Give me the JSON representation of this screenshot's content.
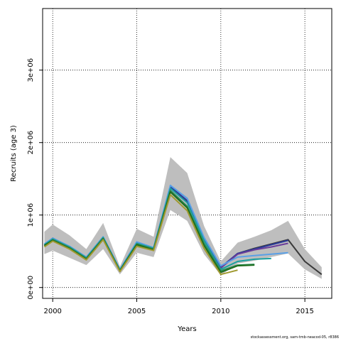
{
  "chart_data": {
    "type": "line",
    "title": "",
    "xlabel": "Years",
    "ylabel": "Recruits (age 3)",
    "xlim": [
      1999.4,
      2016.6
    ],
    "ylim": [
      -150000,
      3850000
    ],
    "x_ticks": [
      2000,
      2005,
      2010,
      2015
    ],
    "x_tick_labels": [
      "2000",
      "2005",
      "2010",
      "2015"
    ],
    "y_ticks": [
      0,
      1000000,
      2000000,
      3000000
    ],
    "y_tick_labels": [
      "0e+00",
      "1e+06",
      "2e+06",
      "3e+06"
    ],
    "grid": "dotted",
    "legend": "none",
    "confidence_band": {
      "x": [
        1999.5,
        2000,
        2001,
        2002,
        2003,
        2004,
        2005,
        2006,
        2007,
        2008,
        2009,
        2010,
        2011,
        2012,
        2013,
        2014,
        2015,
        2016
      ],
      "lower": [
        460000,
        510000,
        410000,
        310000,
        530000,
        180000,
        480000,
        420000,
        1070000,
        920000,
        460000,
        170000,
        330000,
        370000,
        420000,
        470000,
        250000,
        120000
      ],
      "upper": [
        770000,
        870000,
        720000,
        530000,
        890000,
        290000,
        810000,
        700000,
        1800000,
        1580000,
        850000,
        360000,
        620000,
        700000,
        790000,
        920000,
        530000,
        280000
      ],
      "color": "#bebebe"
    },
    "series": [
      {
        "color": "#3a3a3a",
        "x": [
          1999.5,
          2000,
          2001,
          2002,
          2003,
          2004,
          2005,
          2006,
          2007,
          2008,
          2009,
          2010,
          2011,
          2012,
          2013,
          2014,
          2015,
          2016
        ],
        "values": [
          590000,
          680000,
          560000,
          410000,
          690000,
          240000,
          620000,
          540000,
          1380000,
          1180000,
          660000,
          270000,
          470000,
          540000,
          600000,
          660000,
          360000,
          180000
        ]
      },
      {
        "color": "#2b3a9a",
        "x": [
          1999.5,
          2000,
          2001,
          2002,
          2003,
          2004,
          2005,
          2006,
          2007,
          2008,
          2009,
          2010,
          2011,
          2012,
          2013,
          2014
        ],
        "values": [
          580000,
          670000,
          560000,
          410000,
          690000,
          240000,
          620000,
          530000,
          1390000,
          1200000,
          670000,
          280000,
          470000,
          530000,
          590000,
          650000
        ]
      },
      {
        "color": "#6a3d9a",
        "x": [
          2010,
          2011,
          2012,
          2013,
          2014
        ],
        "values": [
          270000,
          460000,
          520000,
          560000,
          610000
        ]
      },
      {
        "color": "#5aa0e6",
        "x": [
          1999.5,
          2000,
          2001,
          2002,
          2003,
          2004,
          2005,
          2006,
          2007,
          2008,
          2009,
          2010,
          2011,
          2012,
          2013,
          2014
        ],
        "values": [
          600000,
          680000,
          570000,
          420000,
          700000,
          250000,
          630000,
          550000,
          1410000,
          1230000,
          690000,
          300000,
          420000,
          440000,
          460000,
          480000
        ]
      },
      {
        "color": "#1aa0a0",
        "x": [
          1999.5,
          2000,
          2001,
          2002,
          2003,
          2004,
          2005,
          2006,
          2007,
          2008,
          2009,
          2010,
          2011,
          2012,
          2013
        ],
        "values": [
          590000,
          670000,
          560000,
          410000,
          690000,
          240000,
          610000,
          540000,
          1370000,
          1170000,
          650000,
          250000,
          360000,
          390000,
          400000
        ]
      },
      {
        "color": "#2e8b57",
        "x": [
          1999.5,
          2000,
          2001,
          2002,
          2003,
          2004,
          2005,
          2006,
          2007,
          2008,
          2009,
          2010,
          2011,
          2012
        ],
        "values": [
          570000,
          660000,
          550000,
          400000,
          680000,
          230000,
          600000,
          530000,
          1340000,
          1120000,
          610000,
          230000,
          310000,
          320000
        ]
      },
      {
        "color": "#1e6e1e",
        "x": [
          1999.5,
          2000,
          2001,
          2002,
          2003,
          2004,
          2005,
          2006,
          2007,
          2008,
          2009,
          2010,
          2011,
          2012
        ],
        "values": [
          580000,
          650000,
          540000,
          390000,
          670000,
          230000,
          590000,
          520000,
          1320000,
          1100000,
          580000,
          210000,
          300000,
          310000
        ]
      },
      {
        "color": "#a09a30",
        "x": [
          1999.5,
          2000,
          2001,
          2002,
          2003,
          2004,
          2005,
          2006,
          2007,
          2008,
          2009,
          2010,
          2011
        ],
        "values": [
          560000,
          640000,
          530000,
          380000,
          660000,
          220000,
          570000,
          510000,
          1280000,
          1060000,
          540000,
          180000,
          240000
        ]
      }
    ]
  },
  "footer": "stockassessment.org, sam-tmb-neacod-05, r8386"
}
